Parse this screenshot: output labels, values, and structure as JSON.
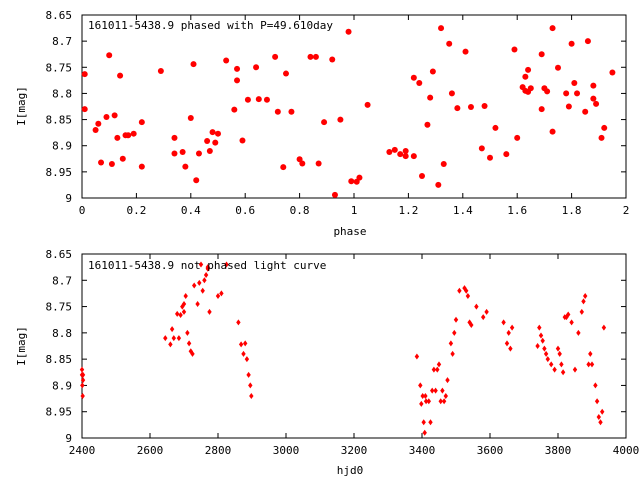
{
  "chart_data": [
    {
      "type": "scatter",
      "title": "161011-5438.9 phased with P=49.610day",
      "xlabel": "phase",
      "ylabel": "I[mag]",
      "xlim": [
        0,
        2
      ],
      "ylim": [
        9,
        8.65
      ],
      "y_inverted": true,
      "xticks": [
        "0",
        "0.2",
        "0.4",
        "0.6",
        "0.8",
        "1",
        "1.2",
        "1.4",
        "1.6",
        "1.8",
        "2"
      ],
      "yticks": [
        "8.65",
        "8.7",
        "8.75",
        "8.8",
        "8.85",
        "8.9",
        "8.95",
        "9"
      ],
      "marker_color": "#ff0000",
      "marker": "circle",
      "series": [
        {
          "x": [
            0.01,
            0.01,
            0.05,
            0.06,
            0.07,
            0.09,
            0.1,
            0.11,
            0.12,
            0.13,
            0.14,
            0.15,
            0.16,
            0.17,
            0.19,
            0.22,
            0.22,
            0.29,
            0.34,
            0.34,
            0.37,
            0.38,
            0.4,
            0.41,
            0.42,
            0.43,
            0.46,
            0.47,
            0.48,
            0.49,
            0.5,
            0.53,
            0.56,
            0.57,
            0.57,
            0.59,
            0.61,
            0.64,
            0.65,
            0.68,
            0.71,
            0.72,
            0.74,
            0.75,
            0.77,
            0.8,
            0.81,
            0.84,
            0.86,
            0.87,
            0.89,
            0.92,
            0.93,
            0.95,
            0.98,
            0.99,
            1.01,
            1.02,
            1.05,
            1.13,
            1.15,
            1.17,
            1.19,
            1.19,
            1.22,
            1.22,
            1.24,
            1.25,
            1.27,
            1.28,
            1.29,
            1.31,
            1.32,
            1.33,
            1.35,
            1.36,
            1.38,
            1.41,
            1.43,
            1.47,
            1.48,
            1.5,
            1.52,
            1.56,
            1.59,
            1.6,
            1.62,
            1.63,
            1.63,
            1.64,
            1.64,
            1.65,
            1.69,
            1.69,
            1.7,
            1.71,
            1.73,
            1.73,
            1.75,
            1.78,
            1.79,
            1.8,
            1.81,
            1.82,
            1.85,
            1.86,
            1.88,
            1.88,
            1.89,
            1.91,
            1.92,
            1.95
          ],
          "y": [
            8.763,
            8.83,
            8.87,
            8.858,
            8.932,
            8.845,
            8.727,
            8.935,
            8.842,
            8.885,
            8.766,
            8.925,
            8.88,
            8.88,
            8.877,
            8.94,
            8.855,
            8.757,
            8.915,
            8.885,
            8.912,
            8.94,
            8.847,
            8.744,
            8.966,
            8.915,
            8.891,
            8.91,
            8.874,
            8.894,
            8.877,
            8.737,
            8.831,
            8.775,
            8.753,
            8.89,
            8.812,
            8.75,
            8.811,
            8.812,
            8.73,
            8.835,
            8.941,
            8.762,
            8.835,
            8.926,
            8.934,
            8.73,
            8.73,
            8.934,
            8.855,
            8.735,
            8.994,
            8.85,
            8.682,
            8.968,
            8.969,
            8.961,
            8.822,
            8.912,
            8.908,
            8.916,
            8.92,
            8.91,
            8.92,
            8.77,
            8.78,
            8.958,
            8.86,
            8.808,
            8.758,
            8.975,
            8.675,
            8.935,
            8.705,
            8.8,
            8.828,
            8.72,
            8.826,
            8.905,
            8.824,
            8.923,
            8.866,
            8.916,
            8.716,
            8.885,
            8.788,
            8.795,
            8.768,
            8.797,
            8.755,
            8.79,
            8.83,
            8.725,
            8.79,
            8.796,
            8.873,
            8.675,
            8.751,
            8.8,
            8.825,
            8.705,
            8.78,
            8.8,
            8.835,
            8.7,
            8.785,
            8.81,
            8.82,
            8.885,
            8.866,
            8.76
          ]
        }
      ]
    },
    {
      "type": "scatter",
      "title": "161011-5438.9 not phased light curve",
      "xlabel": "hjd0",
      "ylabel": "I[mag]",
      "xlim": [
        2400,
        4000
      ],
      "ylim": [
        9,
        8.65
      ],
      "y_inverted": true,
      "xticks": [
        "2400",
        "2600",
        "2800",
        "3000",
        "3200",
        "3400",
        "3600",
        "3800",
        "4000"
      ],
      "yticks": [
        "8.65",
        "8.7",
        "8.75",
        "8.8",
        "8.85",
        "8.9",
        "8.95",
        "9"
      ],
      "marker_color": "#ff0000",
      "marker": "diamond",
      "series": [
        {
          "x": [
            2400,
            2400,
            2401,
            2402,
            2403,
            2403,
            2645,
            2660,
            2665,
            2670,
            2680,
            2685,
            2690,
            2695,
            2700,
            2700,
            2705,
            2710,
            2715,
            2720,
            2725,
            2730,
            2740,
            2745,
            2750,
            2755,
            2760,
            2765,
            2770,
            2770,
            2775,
            2800,
            2810,
            2825,
            2860,
            2868,
            2875,
            2880,
            2885,
            2890,
            2895,
            2898,
            3385,
            3395,
            3398,
            3402,
            3405,
            3408,
            3410,
            3412,
            3420,
            3425,
            3430,
            3435,
            3440,
            3445,
            3450,
            3455,
            3460,
            3465,
            3470,
            3475,
            3485,
            3490,
            3495,
            3500,
            3510,
            3525,
            3530,
            3535,
            3540,
            3545,
            3560,
            3580,
            3590,
            3640,
            3650,
            3655,
            3660,
            3665,
            3740,
            3745,
            3750,
            3755,
            3760,
            3765,
            3770,
            3780,
            3790,
            3800,
            3805,
            3810,
            3815,
            3820,
            3825,
            3830,
            3840,
            3850,
            3860,
            3870,
            3875,
            3880,
            3890,
            3895,
            3900,
            3910,
            3915,
            3920,
            3925,
            3930,
            3935
          ],
          "y": [
            8.87,
            8.88,
            8.9,
            8.92,
            8.89,
            8.88,
            8.81,
            8.822,
            8.793,
            8.81,
            8.764,
            8.81,
            8.766,
            8.75,
            8.76,
            8.745,
            8.73,
            8.8,
            8.82,
            8.835,
            8.84,
            8.71,
            8.745,
            8.705,
            8.67,
            8.72,
            8.7,
            8.69,
            8.675,
            8.678,
            8.76,
            8.73,
            8.725,
            8.67,
            8.78,
            8.822,
            8.84,
            8.82,
            8.85,
            8.88,
            8.9,
            8.92,
            8.845,
            8.9,
            8.935,
            8.92,
            8.97,
            8.99,
            8.92,
            8.93,
            8.93,
            8.97,
            8.91,
            8.87,
            8.91,
            8.87,
            8.86,
            8.93,
            8.91,
            8.93,
            8.92,
            8.89,
            8.82,
            8.84,
            8.8,
            8.775,
            8.72,
            8.715,
            8.72,
            8.73,
            8.78,
            8.785,
            8.75,
            8.77,
            8.76,
            8.78,
            8.82,
            8.8,
            8.83,
            8.79,
            8.825,
            8.79,
            8.805,
            8.815,
            8.83,
            8.84,
            8.85,
            8.86,
            8.87,
            8.83,
            8.84,
            8.86,
            8.875,
            8.77,
            8.77,
            8.765,
            8.78,
            8.87,
            8.8,
            8.76,
            8.74,
            8.73,
            8.86,
            8.84,
            8.86,
            8.9,
            8.93,
            8.96,
            8.97,
            8.95,
            8.79
          ]
        }
      ]
    }
  ]
}
